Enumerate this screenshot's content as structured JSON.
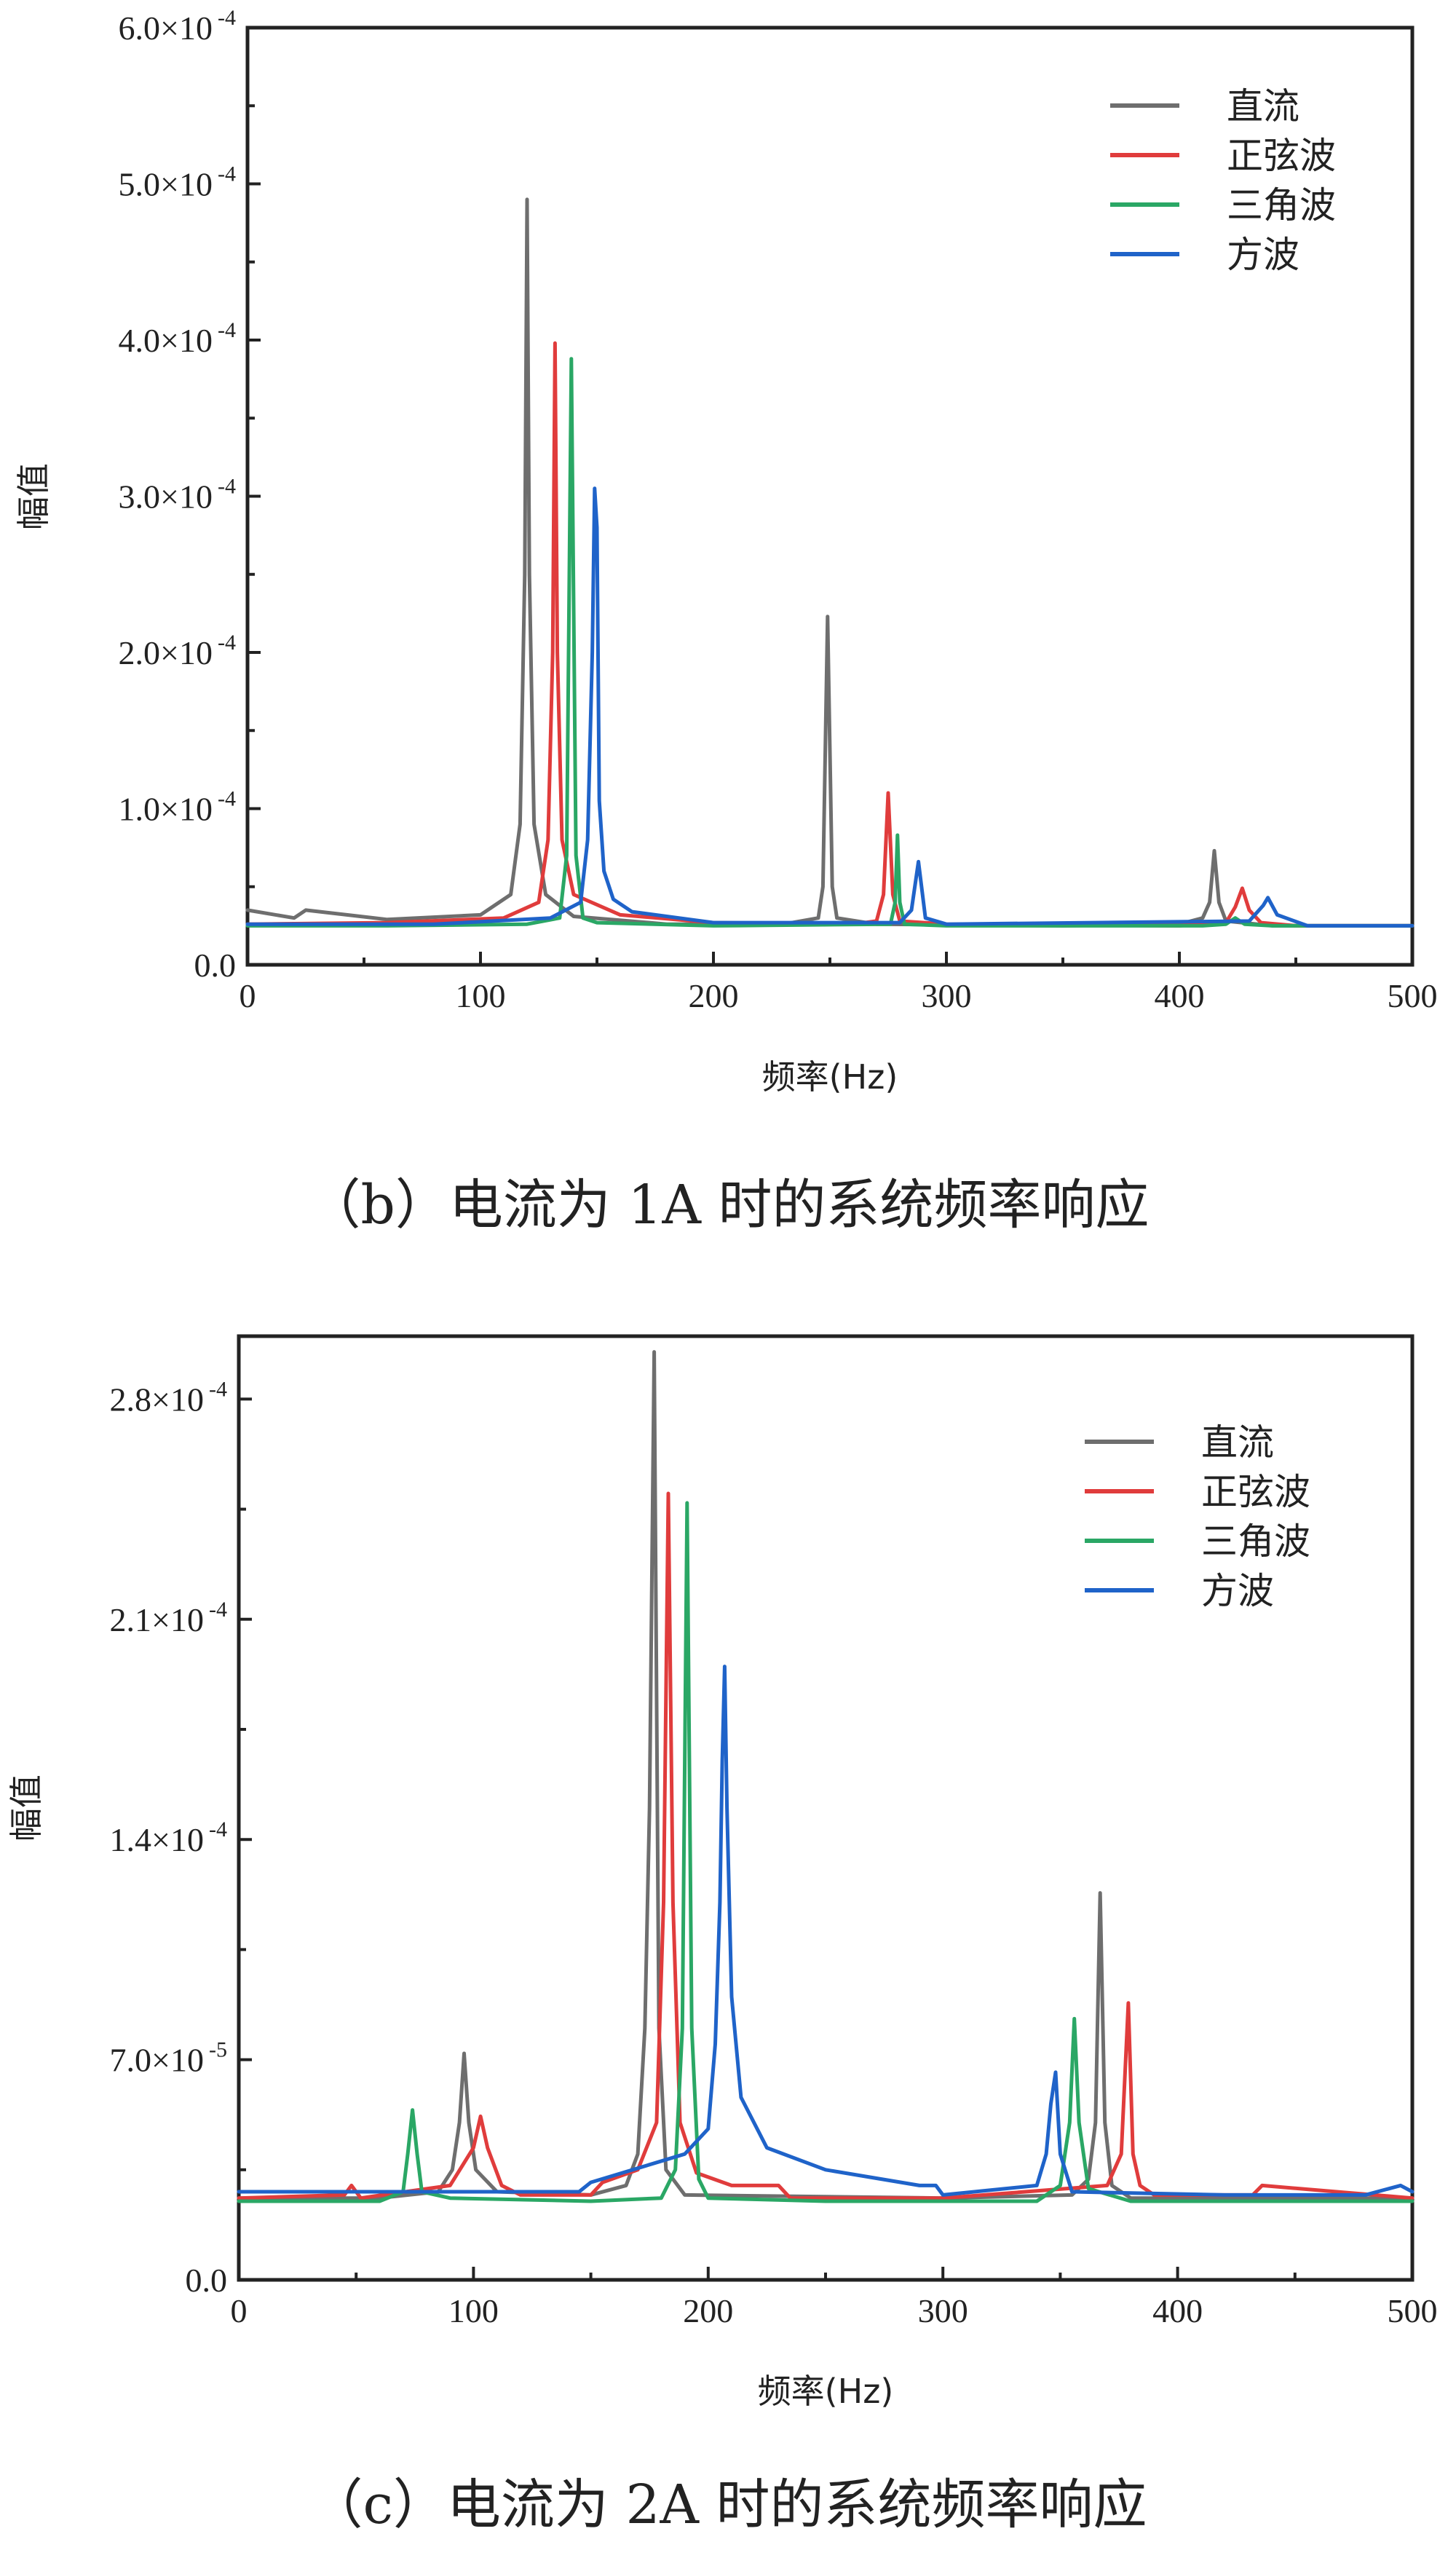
{
  "colors": {
    "dc": "#6e6e6e",
    "sine": "#e03c3c",
    "triangle": "#2aa765",
    "square": "#1f63c9"
  },
  "chart_data": [
    {
      "type": "line",
      "caption": "（b）电流为 1A 时的系统频率响应",
      "xlabel": "频率(Hz)",
      "ylabel": "幅值",
      "xlim": [
        0,
        500
      ],
      "ylim": [
        0,
        0.0006
      ],
      "xticks": [
        0,
        100,
        200,
        300,
        400,
        500
      ],
      "xtick_labels": [
        "0",
        "100",
        "200",
        "300",
        "400",
        "500"
      ],
      "yticks": [
        0,
        0.0001,
        0.0002,
        0.0003,
        0.0004,
        0.0005,
        0.0006
      ],
      "ytick_labels": [
        {
          "text": "0.0",
          "exp": ""
        },
        {
          "text": "1.0×10",
          "exp": "-4"
        },
        {
          "text": "2.0×10",
          "exp": "-4"
        },
        {
          "text": "3.0×10",
          "exp": "-4"
        },
        {
          "text": "4.0×10",
          "exp": "-4"
        },
        {
          "text": "5.0×10",
          "exp": "-4"
        },
        {
          "text": "6.0×10",
          "exp": "-4"
        }
      ],
      "legend_position": "top-right",
      "series": [
        {
          "name": "直流",
          "color_key": "dc",
          "x": [
            0,
            20,
            25,
            60,
            100,
            113,
            117,
            119,
            120,
            121,
            123,
            128,
            140,
            180,
            230,
            245,
            247,
            249,
            251,
            253,
            270,
            350,
            400,
            410,
            413,
            415,
            417,
            420,
            440,
            500
          ],
          "y": [
            3.5e-05,
            3e-05,
            3.5e-05,
            2.9e-05,
            3.2e-05,
            4.5e-05,
            9e-05,
            0.00025,
            0.00049,
            0.00025,
            9e-05,
            4.5e-05,
            3.1e-05,
            2.6e-05,
            2.6e-05,
            3e-05,
            5e-05,
            0.000223,
            5e-05,
            3e-05,
            2.6e-05,
            2.5e-05,
            2.6e-05,
            3e-05,
            4e-05,
            7.3e-05,
            4e-05,
            2.8e-05,
            2.5e-05,
            2.5e-05
          ]
        },
        {
          "name": "正弦波",
          "color_key": "sine",
          "x": [
            0,
            60,
            110,
            125,
            129,
            131,
            132,
            133,
            135,
            140,
            160,
            200,
            260,
            270,
            273,
            275,
            277,
            280,
            300,
            400,
            420,
            424,
            427,
            430,
            435,
            450,
            500
          ],
          "y": [
            2.6e-05,
            2.7e-05,
            3e-05,
            4e-05,
            8e-05,
            0.0002,
            0.000398,
            0.0002,
            8e-05,
            4.5e-05,
            3.2e-05,
            2.7e-05,
            2.6e-05,
            2.8e-05,
            4.5e-05,
            0.00011,
            4.5e-05,
            2.8e-05,
            2.6e-05,
            2.5e-05,
            2.7e-05,
            3.7e-05,
            4.9e-05,
            3.5e-05,
            2.7e-05,
            2.5e-05,
            2.5e-05
          ]
        },
        {
          "name": "三角波",
          "color_key": "triangle",
          "x": [
            0,
            60,
            120,
            134,
            137,
            139,
            141,
            144,
            150,
            200,
            276,
            278,
            279,
            280,
            282,
            300,
            410,
            420,
            424,
            428,
            440,
            500
          ],
          "y": [
            2.5e-05,
            2.5e-05,
            2.6e-05,
            3e-05,
            7e-05,
            0.000388,
            7e-05,
            3e-05,
            2.7e-05,
            2.5e-05,
            2.6e-05,
            4e-05,
            8.3e-05,
            4e-05,
            2.6e-05,
            2.5e-05,
            2.5e-05,
            2.6e-05,
            3e-05,
            2.6e-05,
            2.5e-05,
            2.5e-05
          ]
        },
        {
          "name": "方波",
          "color_key": "square",
          "x": [
            0,
            80,
            130,
            143,
            146,
            148,
            149,
            150,
            151,
            153,
            157,
            165,
            200,
            280,
            285,
            288,
            291,
            300,
            430,
            436,
            438,
            442,
            455,
            500
          ],
          "y": [
            2.6e-05,
            2.6e-05,
            3e-05,
            4e-05,
            8e-05,
            0.0002,
            0.000305,
            0.00028,
            0.000105,
            6e-05,
            4.2e-05,
            3.4e-05,
            2.7e-05,
            2.7e-05,
            3.5e-05,
            6.6e-05,
            3e-05,
            2.6e-05,
            2.8e-05,
            3.8e-05,
            4.3e-05,
            3.2e-05,
            2.5e-05,
            2.5e-05
          ]
        }
      ]
    },
    {
      "type": "line",
      "caption": "（c）电流为 2A 时的系统频率响应",
      "xlabel": "频率(Hz)",
      "ylabel": "幅值",
      "xlim": [
        0,
        500
      ],
      "ylim": [
        0,
        0.0003
      ],
      "xticks": [
        0,
        100,
        200,
        300,
        400,
        500
      ],
      "xtick_labels": [
        "0",
        "100",
        "200",
        "300",
        "400",
        "500"
      ],
      "yticks": [
        0,
        7e-05,
        0.00014,
        0.00021,
        0.00028
      ],
      "ytick_labels": [
        {
          "text": "0.0",
          "exp": ""
        },
        {
          "text": "7.0×10",
          "exp": "-5"
        },
        {
          "text": "1.4×10",
          "exp": "-4"
        },
        {
          "text": "2.1×10",
          "exp": "-4"
        },
        {
          "text": "2.8×10",
          "exp": "-4"
        }
      ],
      "legend_position": "top-right",
      "series": [
        {
          "name": "直流",
          "color_key": "dc",
          "x": [
            0,
            60,
            85,
            91,
            94,
            96,
            98,
            101,
            110,
            150,
            165,
            170,
            173,
            175,
            177,
            179,
            182,
            190,
            300,
            355,
            362,
            365,
            367,
            369,
            372,
            380,
            500
          ],
          "y": [
            2.6e-05,
            2.6e-05,
            2.8e-05,
            3.5e-05,
            5e-05,
            7.2e-05,
            5e-05,
            3.5e-05,
            2.8e-05,
            2.7e-05,
            3e-05,
            4e-05,
            8e-05,
            0.00015,
            0.000295,
            8e-05,
            3.5e-05,
            2.7e-05,
            2.6e-05,
            2.7e-05,
            3.2e-05,
            5e-05,
            0.000123,
            5e-05,
            3e-05,
            2.6e-05,
            2.6e-05
          ]
        },
        {
          "name": "正弦波",
          "color_key": "sine",
          "x": [
            0,
            45,
            48,
            52,
            90,
            100,
            103,
            106,
            112,
            120,
            150,
            155,
            170,
            178,
            181,
            183,
            185,
            188,
            195,
            210,
            230,
            235,
            300,
            370,
            376,
            379,
            381,
            384,
            390,
            432,
            436,
            500
          ],
          "y": [
            2.6e-05,
            2.7e-05,
            3e-05,
            2.6e-05,
            3e-05,
            4.2e-05,
            5.2e-05,
            4.2e-05,
            3e-05,
            2.7e-05,
            2.7e-05,
            3.1e-05,
            3.5e-05,
            5e-05,
            0.00012,
            0.00025,
            0.00012,
            5e-05,
            3.4e-05,
            3e-05,
            3e-05,
            2.6e-05,
            2.6e-05,
            3e-05,
            4e-05,
            8.8e-05,
            4e-05,
            3e-05,
            2.7e-05,
            2.7e-05,
            3e-05,
            2.6e-05
          ]
        },
        {
          "name": "三角波",
          "color_key": "triangle",
          "x": [
            0,
            60,
            70,
            72,
            74,
            76,
            78,
            90,
            150,
            180,
            186,
            189,
            191,
            193,
            196,
            200,
            250,
            340,
            350,
            354,
            356,
            358,
            362,
            380,
            500
          ],
          "y": [
            2.5e-05,
            2.5e-05,
            2.8e-05,
            4e-05,
            5.4e-05,
            4e-05,
            2.8e-05,
            2.6e-05,
            2.5e-05,
            2.6e-05,
            3.5e-05,
            8e-05,
            0.000247,
            8e-05,
            3.2e-05,
            2.6e-05,
            2.5e-05,
            2.5e-05,
            3e-05,
            5e-05,
            8.3e-05,
            5e-05,
            2.9e-05,
            2.5e-05,
            2.5e-05
          ]
        },
        {
          "name": "方波",
          "color_key": "square",
          "x": [
            0,
            50,
            100,
            145,
            150,
            190,
            200,
            203,
            205,
            206,
            207,
            208,
            210,
            214,
            225,
            250,
            290,
            297,
            300,
            340,
            344,
            346,
            348,
            350,
            355,
            420,
            480,
            495,
            500
          ],
          "y": [
            2.8e-05,
            2.8e-05,
            2.8e-05,
            2.8e-05,
            3.1e-05,
            4e-05,
            4.8e-05,
            7.5e-05,
            0.00012,
            0.000165,
            0.000195,
            0.00015,
            9e-05,
            5.8e-05,
            4.2e-05,
            3.5e-05,
            3e-05,
            3e-05,
            2.7e-05,
            3e-05,
            4e-05,
            5.6e-05,
            6.6e-05,
            4e-05,
            2.8e-05,
            2.7e-05,
            2.7e-05,
            3e-05,
            2.8e-05
          ]
        }
      ]
    }
  ]
}
